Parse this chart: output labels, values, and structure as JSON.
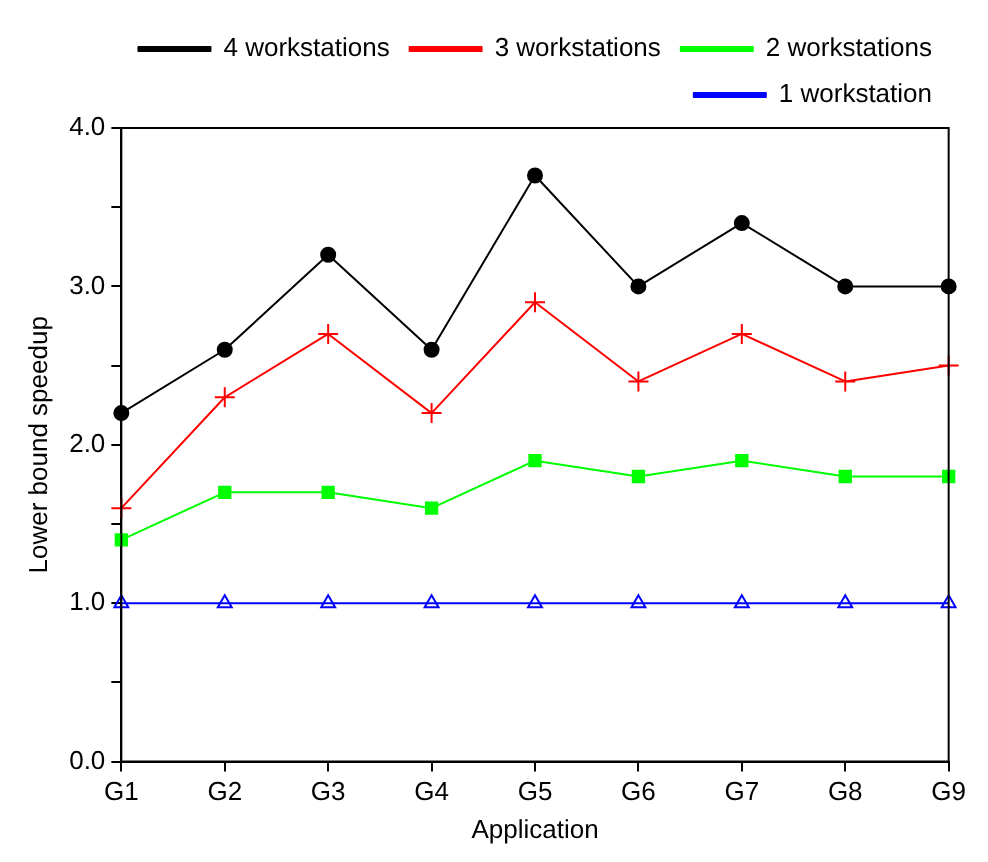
{
  "chart_data": {
    "type": "line",
    "xlabel": "Application",
    "ylabel": "Lower bound speedup",
    "categories": [
      "G1",
      "G2",
      "G3",
      "G4",
      "G5",
      "G6",
      "G7",
      "G8",
      "G9"
    ],
    "series": [
      {
        "name": "4 workstations",
        "color": "#000000",
        "marker": "circle",
        "values": [
          2.2,
          2.6,
          3.2,
          2.6,
          3.7,
          3.0,
          3.4,
          3.0,
          3.0
        ]
      },
      {
        "name": "3 workstations",
        "color": "#ff0000",
        "marker": "cross",
        "values": [
          1.6,
          2.3,
          2.7,
          2.2,
          2.9,
          2.4,
          2.7,
          2.4,
          2.5
        ]
      },
      {
        "name": "2 workstations",
        "color": "#00ff00",
        "marker": "square",
        "values": [
          1.4,
          1.7,
          1.7,
          1.6,
          1.9,
          1.8,
          1.9,
          1.8,
          1.8
        ]
      },
      {
        "name": "1 workstation",
        "color": "#0000ff",
        "marker": "triangle",
        "values": [
          1,
          1,
          1,
          1,
          1,
          1,
          1,
          1,
          1
        ]
      }
    ],
    "ylim": [
      0,
      4
    ],
    "yticks": [
      {
        "value": 0,
        "label": "0.0"
      },
      {
        "value": 0.5,
        "label": null
      },
      {
        "value": 1,
        "label": "1.0"
      },
      {
        "value": 1.5,
        "label": null
      },
      {
        "value": 2,
        "label": "2.0"
      },
      {
        "value": 2.5,
        "label": null
      },
      {
        "value": 3,
        "label": "3.0"
      },
      {
        "value": 3.5,
        "label": null
      },
      {
        "value": 4,
        "label": "4.0"
      }
    ],
    "grid": false,
    "legend": "top",
    "line_style": "solid"
  }
}
